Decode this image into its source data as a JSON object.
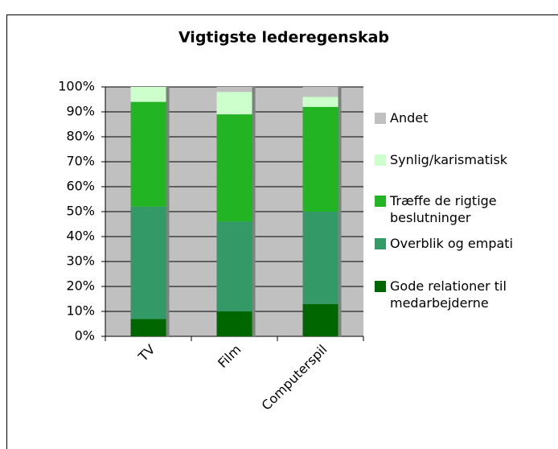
{
  "chart_data": {
    "type": "stacked_bar",
    "title": "Vigtigste lederegenskab",
    "categories": [
      "TV",
      "Film",
      "Computerspil"
    ],
    "series": [
      {
        "name": "Gode relationer til medarbejderne",
        "color": "#006600",
        "values": [
          7,
          10,
          13
        ]
      },
      {
        "name": "Overblik og empati",
        "color": "#339966",
        "values": [
          45,
          36,
          37
        ]
      },
      {
        "name": "Træffe de rigtige beslutninger",
        "color": "#22b422",
        "values": [
          42,
          43,
          42
        ]
      },
      {
        "name": "Synlig/karismatisk",
        "color": "#ccffcc",
        "values": [
          6,
          9,
          4
        ]
      },
      {
        "name": "Andet",
        "color": "#c0c0c0",
        "values": [
          0,
          2,
          4
        ]
      }
    ],
    "ylim": [
      0,
      100
    ],
    "yticks": [
      {
        "value": 0,
        "label": "0%"
      },
      {
        "value": 10,
        "label": "10%"
      },
      {
        "value": 20,
        "label": "20%"
      },
      {
        "value": 30,
        "label": "30%"
      },
      {
        "value": 40,
        "label": "40%"
      },
      {
        "value": 50,
        "label": "50%"
      },
      {
        "value": 60,
        "label": "60%"
      },
      {
        "value": 70,
        "label": "70%"
      },
      {
        "value": 80,
        "label": "80%"
      },
      {
        "value": 90,
        "label": "90%"
      },
      {
        "value": 100,
        "label": "100%"
      }
    ],
    "grid": true,
    "legend": "right"
  }
}
